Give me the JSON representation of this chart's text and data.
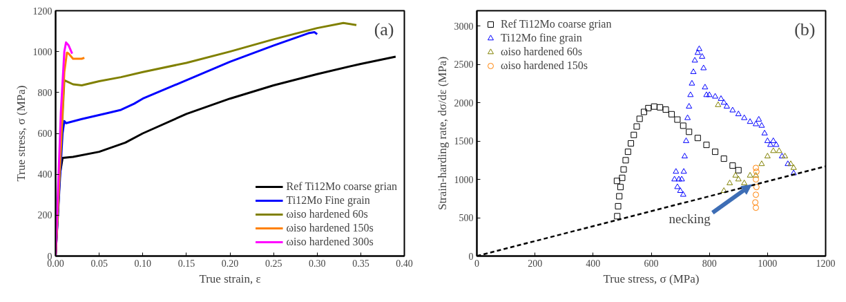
{
  "chart_data": [
    {
      "type": "line",
      "xlabel": "True strain, ε",
      "ylabel": "True stress, σ (MPa)",
      "annotations": [
        "(a)"
      ],
      "xlim": [
        0,
        0.4
      ],
      "ylim": [
        0,
        1200
      ],
      "xticks": [
        {
          "value": 0,
          "label": "0.00"
        },
        {
          "value": 0.05,
          "label": "0.05"
        },
        {
          "value": 0.1,
          "label": "0.10"
        },
        {
          "value": 0.15,
          "label": "0.15"
        },
        {
          "value": 0.2,
          "label": "0.20"
        },
        {
          "value": 0.25,
          "label": "0.25"
        },
        {
          "value": 0.3,
          "label": "0.30"
        },
        {
          "value": 0.35,
          "label": "0.35"
        },
        {
          "value": 0.4,
          "label": "0.40"
        }
      ],
      "yticks": [
        0,
        200,
        400,
        600,
        800,
        1000,
        1200
      ],
      "grid": false,
      "legend": "bottom right",
      "series": [
        {
          "name": "Ref Ti12Mo coarse grian",
          "color": "#000000",
          "x": [
            0,
            0.005,
            0.008,
            0.02,
            0.05,
            0.08,
            0.1,
            0.15,
            0.2,
            0.25,
            0.3,
            0.35,
            0.39
          ],
          "values": [
            0,
            400,
            480,
            485,
            510,
            555,
            600,
            695,
            770,
            835,
            890,
            940,
            975
          ]
        },
        {
          "name": "Ti12Mo Fine grain",
          "color": "#0000ff",
          "x": [
            0,
            0.008,
            0.01,
            0.012,
            0.03,
            0.06,
            0.075,
            0.09,
            0.1,
            0.15,
            0.2,
            0.25,
            0.29,
            0.297,
            0.3
          ],
          "values": [
            0,
            600,
            660,
            650,
            670,
            700,
            715,
            745,
            770,
            860,
            950,
            1030,
            1090,
            1095,
            1085
          ]
        },
        {
          "name": "ωiso hardened 60s",
          "color": "#808000",
          "x": [
            0,
            0.01,
            0.02,
            0.03,
            0.05,
            0.075,
            0.1,
            0.15,
            0.2,
            0.25,
            0.3,
            0.33,
            0.345
          ],
          "values": [
            0,
            860,
            840,
            835,
            855,
            875,
            900,
            945,
            1000,
            1060,
            1115,
            1140,
            1130
          ]
        },
        {
          "name": "ωiso hardened 150s",
          "color": "#ff8000",
          "x": [
            0,
            0.01,
            0.013,
            0.015,
            0.02,
            0.03,
            0.033
          ],
          "values": [
            0,
            900,
            995,
            990,
            965,
            965,
            970
          ]
        },
        {
          "name": "ωiso hardened 300s",
          "color": "#ff00ff",
          "x": [
            0,
            0.006,
            0.01,
            0.012,
            0.015,
            0.019
          ],
          "values": [
            0,
            700,
            1000,
            1045,
            1030,
            990
          ]
        }
      ]
    },
    {
      "type": "scatter",
      "xlabel": "True stress, σ (MPa)",
      "ylabel": "Strain-harding rate, dσ/dε (MPa)",
      "annotations": [
        "(b)",
        {
          "text": "necking",
          "x": 955,
          "y": 940
        }
      ],
      "xlim": [
        0,
        1200
      ],
      "ylim": [
        0,
        3200
      ],
      "xticks": [
        0,
        200,
        400,
        600,
        800,
        1000,
        1200
      ],
      "yticks": [
        0,
        500,
        1000,
        1500,
        2000,
        2500,
        3000
      ],
      "grid": false,
      "legend": "top left",
      "series": [
        {
          "name": "Ref Ti12Mo coarse grian",
          "color": "#000000",
          "marker": "square",
          "x": [
            482,
            483,
            486,
            490,
            494,
            500,
            505,
            512,
            520,
            530,
            540,
            550,
            560,
            575,
            590,
            610,
            630,
            650,
            670,
            690,
            710,
            730,
            760,
            790,
            820,
            850,
            880,
            900
          ],
          "values": [
            980,
            520,
            650,
            780,
            900,
            1020,
            1130,
            1250,
            1360,
            1470,
            1580,
            1690,
            1790,
            1880,
            1930,
            1950,
            1940,
            1910,
            1850,
            1780,
            1700,
            1620,
            1540,
            1450,
            1360,
            1270,
            1180,
            1120
          ]
        },
        {
          "name": "Ti12Mo fine grain",
          "color": "#0000ff",
          "marker": "triangle",
          "x": [
            680,
            685,
            690,
            695,
            700,
            705,
            710,
            712,
            715,
            720,
            725,
            730,
            735,
            740,
            745,
            750,
            760,
            765,
            775,
            780,
            785,
            790,
            800,
            820,
            840,
            850,
            860,
            880,
            900,
            920,
            940,
            960,
            970,
            980,
            990,
            1000,
            1010,
            1020,
            1030,
            1050,
            1070,
            1090
          ],
          "values": [
            1000,
            1100,
            900,
            1000,
            850,
            1000,
            800,
            1100,
            1300,
            1500,
            1800,
            1950,
            2100,
            2250,
            2400,
            2550,
            2650,
            2700,
            2600,
            2450,
            2200,
            2100,
            2100,
            2080,
            2050,
            2000,
            1950,
            1900,
            1850,
            1800,
            1750,
            1720,
            1780,
            1700,
            1600,
            1500,
            1450,
            1500,
            1450,
            1300,
            1200,
            1080
          ]
        },
        {
          "name": "ωiso hardened 60s",
          "color": "#808000",
          "marker": "triangle",
          "x": [
            830,
            850,
            870,
            890,
            900,
            920,
            940,
            960,
            980,
            1000,
            1020,
            1040,
            1060,
            1080,
            1090
          ],
          "values": [
            1970,
            850,
            950,
            1050,
            1000,
            950,
            1050,
            1050,
            1200,
            1300,
            1370,
            1370,
            1300,
            1200,
            1150
          ]
        },
        {
          "name": "ωiso hardened 150s",
          "color": "#ff8000",
          "marker": "circle",
          "x": [
            960,
            958,
            960,
            962,
            960,
            962,
            960
          ],
          "values": [
            630,
            700,
            800,
            900,
            1000,
            1100,
            1150
          ]
        },
        {
          "type": "line",
          "color": "#000000",
          "line_style": "dashed",
          "x": [
            0,
            1200
          ],
          "values": [
            0,
            1170
          ]
        }
      ]
    }
  ]
}
